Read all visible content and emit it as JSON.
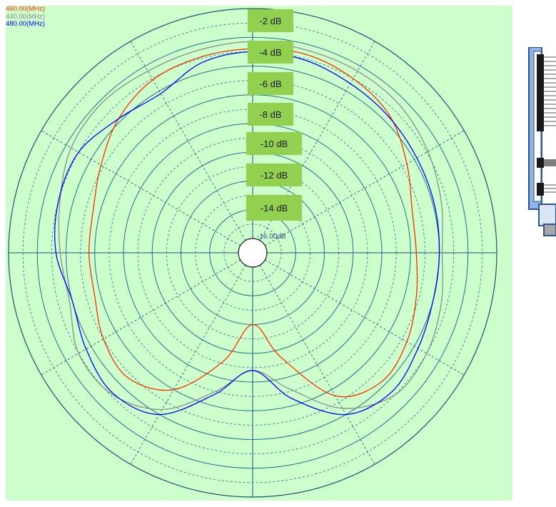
{
  "legend": [
    {
      "label": "460.00(MHz)",
      "color": "#ff2a00"
    },
    {
      "label": "440.00(MHz)",
      "color": "#8c8c8c"
    },
    {
      "label": "480.00(MHz)",
      "color": "#0000ff"
    }
  ],
  "ring_labels": [
    "-2 dB",
    "-4 dB",
    "-6 dB",
    "-8 dB",
    "-10 dB",
    "-12 dB",
    "-14 dB"
  ],
  "center_label": "-16.00dB",
  "colors": {
    "background": "#ccffcc",
    "ring": "#1f6f8b",
    "axis": "#1f4f6f",
    "label_bg": "#92d050",
    "device_blue": "#8db4e2"
  },
  "chart_data": {
    "type": "polar",
    "radial_unit": "dB",
    "r_range": [
      -16,
      0
    ],
    "ring_values": [
      -2,
      -4,
      -6,
      -8,
      -10,
      -12,
      -14,
      -16
    ],
    "angle_step_deg": 30,
    "angle_zero": "top",
    "angle_direction": "clockwise",
    "grid": true,
    "series": [
      {
        "name": "460.00(MHz)",
        "color": "#ff2a00",
        "angles_deg": [
          0,
          15,
          30,
          45,
          60,
          75,
          90,
          105,
          120,
          135,
          150,
          165,
          180,
          195,
          210,
          225,
          240,
          255,
          270,
          285,
          300,
          315,
          330,
          345
        ],
        "values_db": [
          -2.8,
          -2.7,
          -3.0,
          -3.5,
          -4.6,
          -5.5,
          -5.6,
          -5.2,
          -4.6,
          -4.3,
          -5.5,
          -9.5,
          -12.0,
          -9.2,
          -6.0,
          -4.7,
          -5.0,
          -5.6,
          -5.6,
          -5.5,
          -4.8,
          -3.8,
          -3.1,
          -2.9
        ]
      },
      {
        "name": "440.00(MHz)",
        "color": "#8c8c8c",
        "angles_deg": [
          0,
          15,
          30,
          45,
          60,
          75,
          90,
          105,
          120,
          135,
          150,
          165,
          180,
          195,
          210,
          225,
          240,
          255,
          270,
          285,
          300,
          315,
          330,
          345
        ],
        "values_db": [
          -2.3,
          -2.4,
          -2.4,
          -2.5,
          -2.9,
          -3.4,
          -3.8,
          -3.4,
          -3.0,
          -3.0,
          -4.5,
          -7.2,
          -8.8,
          -7.0,
          -4.4,
          -3.1,
          -3.0,
          -3.8,
          -3.6,
          -3.1,
          -2.4,
          -2.2,
          -2.4,
          -2.4
        ]
      },
      {
        "name": "480.00(MHz)",
        "color": "#0000ff",
        "angles_deg": [
          0,
          15,
          30,
          45,
          60,
          75,
          90,
          105,
          120,
          135,
          150,
          165,
          180,
          195,
          210,
          225,
          240,
          255,
          270,
          285,
          300,
          315,
          330,
          345
        ],
        "values_db": [
          -3.0,
          -3.1,
          -3.4,
          -3.6,
          -3.8,
          -3.9,
          -4.0,
          -4.0,
          -3.7,
          -3.3,
          -4.0,
          -6.5,
          -8.8,
          -6.8,
          -4.0,
          -3.2,
          -3.6,
          -4.0,
          -3.3,
          -3.0,
          -3.0,
          -3.8,
          -4.2,
          -3.3
        ]
      }
    ]
  }
}
